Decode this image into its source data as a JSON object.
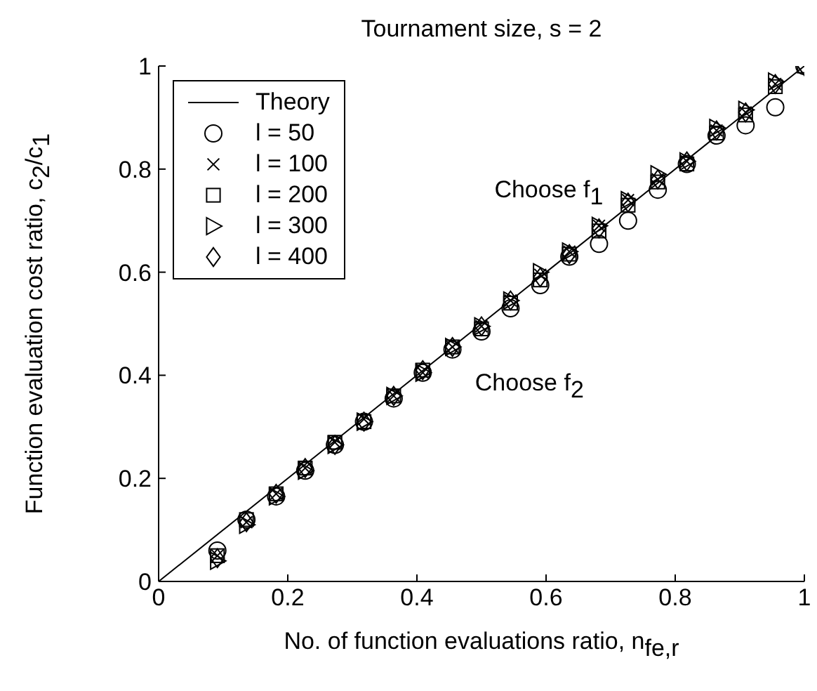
{
  "chart_data": {
    "type": "scatter",
    "title": "Tournament size, s = 2",
    "xlabel": "No. of function evaluations ratio, n$_{fe,r}$",
    "ylabel": "Function evaluation cost ratio, c$_{2}$/c$_{1}$",
    "x": [
      0.091,
      0.136,
      0.182,
      0.227,
      0.273,
      0.318,
      0.364,
      0.409,
      0.455,
      0.5,
      0.545,
      0.591,
      0.636,
      0.682,
      0.727,
      0.773,
      0.818,
      0.864,
      0.909,
      0.955,
      1
    ],
    "series": [
      {
        "name": "Theory",
        "type": "line",
        "color": "#000000",
        "x": [
          0,
          1
        ],
        "values": [
          0,
          1
        ],
        "marker": "none",
        "line_style": "solid"
      },
      {
        "name": "l = 50",
        "color": "#000000",
        "marker": "circle",
        "values": [
          0.06,
          0.12,
          0.165,
          0.215,
          0.265,
          0.31,
          0.355,
          0.405,
          0.45,
          0.485,
          0.53,
          0.575,
          0.63,
          0.655,
          0.7,
          0.76,
          0.81,
          0.865,
          0.885,
          0.92,
          1.0
        ]
      },
      {
        "name": "l = 100",
        "color": "#000000",
        "marker": "cross",
        "values": [
          0.05,
          0.115,
          0.17,
          0.22,
          0.27,
          0.315,
          0.36,
          0.405,
          0.455,
          0.495,
          0.545,
          0.595,
          0.64,
          0.69,
          0.74,
          0.78,
          0.815,
          0.875,
          0.91,
          0.965,
          null
        ]
      },
      {
        "name": "l = 200",
        "color": "#000000",
        "marker": "square",
        "values": [
          0.05,
          0.12,
          0.17,
          0.22,
          0.27,
          0.31,
          0.36,
          0.41,
          0.455,
          0.49,
          0.54,
          0.585,
          0.635,
          0.68,
          0.73,
          0.775,
          0.81,
          0.87,
          0.905,
          0.96,
          1.0
        ]
      },
      {
        "name": "l = 300",
        "color": "#000000",
        "marker": "triangle",
        "values": [
          0.04,
          0.11,
          0.165,
          0.215,
          0.265,
          0.31,
          0.36,
          0.405,
          0.455,
          0.495,
          0.545,
          0.6,
          0.64,
          0.69,
          0.74,
          0.79,
          0.815,
          0.88,
          0.915,
          0.97,
          null
        ]
      },
      {
        "name": "l = 400",
        "color": "#000000",
        "marker": "diamond",
        "values": [
          0.045,
          0.115,
          0.17,
          0.22,
          0.265,
          0.31,
          0.36,
          0.41,
          0.455,
          0.495,
          0.545,
          0.59,
          0.635,
          0.685,
          0.735,
          0.78,
          0.815,
          0.875,
          0.91,
          0.965,
          1.0
        ]
      }
    ],
    "annotations": [
      "Choose f$_{1}$",
      "Choose f$_{2}$"
    ],
    "xlim": [
      0,
      1
    ],
    "xticks": [
      0,
      0.2,
      0.4,
      0.6,
      0.8,
      1
    ],
    "ylim": [
      0,
      1
    ],
    "yticks": [
      0,
      0.2,
      0.4,
      0.6,
      0.8,
      1
    ],
    "grid": false,
    "legend": "top left"
  }
}
